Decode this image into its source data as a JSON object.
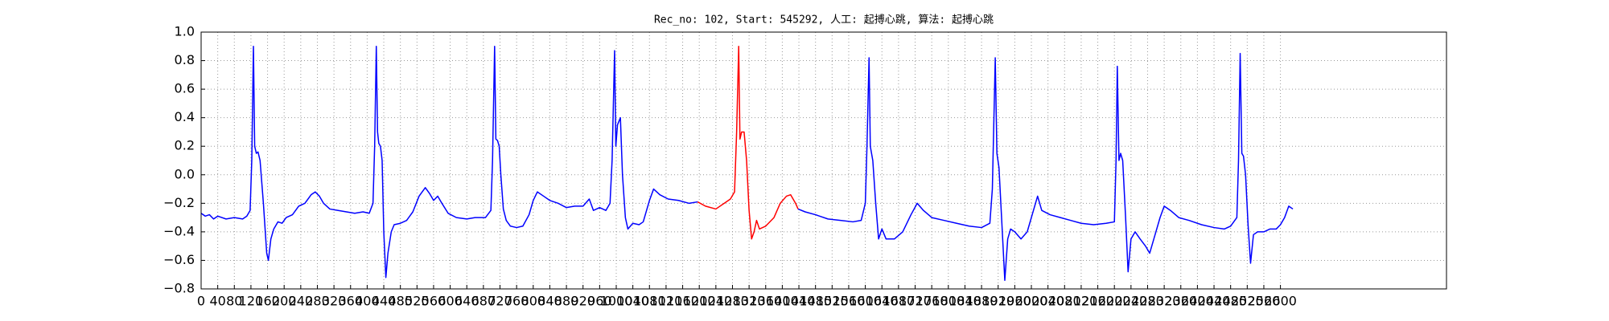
{
  "chart_data": {
    "type": "line",
    "title": "Rec_no: 102, Start: 545292, 人工: 起搏心跳, 算法: 起搏心跳",
    "xlim": [
      0,
      3000
    ],
    "xticks": [
      0,
      40,
      80,
      120,
      160,
      200,
      240,
      280,
      320,
      360,
      400,
      440,
      480,
      520,
      560,
      600,
      640,
      680,
      720,
      760,
      800,
      840,
      880,
      920,
      960,
      1000,
      1040,
      1080,
      1120,
      1160,
      1200,
      1240,
      1280,
      1320,
      1360,
      1400,
      1440,
      1480,
      1520,
      1560,
      1600,
      1640,
      1680,
      1720,
      1760,
      1800,
      1840,
      1880,
      1920,
      1960,
      2000,
      2040,
      2080,
      2120,
      2160,
      2200,
      2240,
      2280,
      2320,
      2360,
      2400,
      2440,
      2480,
      2520,
      2560,
      2600
    ],
    "ylim": [
      -0.8,
      1.0
    ],
    "yticks": [
      {
        "value": -0.8,
        "label": "−0.8"
      },
      {
        "value": -0.6,
        "label": "−0.6"
      },
      {
        "value": -0.4,
        "label": "−0.4"
      },
      {
        "value": -0.2,
        "label": "−0.2"
      },
      {
        "value": 0,
        "label": "0.0"
      },
      0.2,
      0.4,
      0.6,
      0.8,
      {
        "value": 1,
        "label": "1.0"
      }
    ],
    "grid": true,
    "series": [
      {
        "color": "#0000ff",
        "x": [
          0,
          10,
          20,
          30,
          40,
          60,
          80,
          100,
          110,
          118,
          122,
          126,
          129,
          133,
          137,
          142,
          150,
          158,
          162,
          168,
          175,
          185,
          195,
          205,
          220,
          235,
          250,
          265,
          275,
          285,
          295,
          310,
          330,
          350,
          370,
          390,
          405,
          414,
          418,
          422,
          425,
          428,
          432,
          436,
          440,
          445,
          450,
          458,
          465,
          480,
          495,
          510,
          525,
          540,
          550,
          560,
          570,
          580,
          595,
          615,
          640,
          660,
          685,
          698,
          702,
          707,
          710,
          714,
          718,
          722,
          728,
          735,
          745,
          760,
          775,
          790,
          800,
          810,
          825,
          840,
          860,
          880,
          900,
          920,
          935,
          945,
          960,
          975,
          985,
          990,
          996,
          999,
          1003,
          1010,
          1015,
          1022,
          1028,
          1040,
          1055,
          1065,
          1080,
          1090,
          1105,
          1125,
          1150,
          1175,
          1196
        ],
        "values": [
          -0.27,
          -0.29,
          -0.28,
          -0.31,
          -0.29,
          -0.31,
          -0.3,
          -0.31,
          -0.29,
          -0.25,
          0.1,
          0.9,
          0.2,
          0.15,
          0.16,
          0.1,
          -0.2,
          -0.55,
          -0.6,
          -0.45,
          -0.38,
          -0.33,
          -0.34,
          -0.3,
          -0.28,
          -0.22,
          -0.2,
          -0.14,
          -0.12,
          -0.15,
          -0.2,
          -0.24,
          -0.25,
          -0.26,
          -0.27,
          -0.26,
          -0.27,
          -0.2,
          0.2,
          0.9,
          0.3,
          0.22,
          0.2,
          0.1,
          -0.4,
          -0.72,
          -0.55,
          -0.4,
          -0.35,
          -0.34,
          -0.32,
          -0.26,
          -0.15,
          -0.09,
          -0.13,
          -0.18,
          -0.15,
          -0.2,
          -0.27,
          -0.3,
          -0.31,
          -0.3,
          -0.3,
          -0.25,
          0.1,
          0.9,
          0.25,
          0.24,
          0.2,
          0.0,
          -0.24,
          -0.32,
          -0.36,
          -0.37,
          -0.36,
          -0.28,
          -0.18,
          -0.12,
          -0.15,
          -0.18,
          -0.2,
          -0.23,
          -0.22,
          -0.22,
          -0.17,
          -0.25,
          -0.23,
          -0.25,
          -0.2,
          0.1,
          0.87,
          0.2,
          0.35,
          0.4,
          0.0,
          -0.3,
          -0.38,
          -0.34,
          -0.35,
          -0.33,
          -0.18,
          -0.1,
          -0.14,
          -0.17,
          -0.18,
          -0.2,
          -0.19
        ]
      },
      {
        "color": "#ff0000",
        "x": [
          1196,
          1215,
          1240,
          1260,
          1275,
          1285,
          1290,
          1295,
          1298,
          1302,
          1308,
          1314,
          1320,
          1326,
          1332,
          1338,
          1345,
          1360,
          1380,
          1395,
          1410,
          1420,
          1432,
          1438
        ],
        "values": [
          -0.19,
          -0.22,
          -0.24,
          -0.2,
          -0.17,
          -0.12,
          0.3,
          0.9,
          0.25,
          0.3,
          0.3,
          0.1,
          -0.25,
          -0.45,
          -0.4,
          -0.32,
          -0.38,
          -0.36,
          -0.3,
          -0.2,
          -0.15,
          -0.14,
          -0.2,
          -0.24
        ]
      },
      {
        "color": "#0000ff",
        "x": [
          1438,
          1455,
          1480,
          1510,
          1540,
          1570,
          1590,
          1600,
          1604,
          1609,
          1612,
          1618,
          1625,
          1632,
          1640,
          1650,
          1670,
          1690,
          1710,
          1725,
          1740,
          1760,
          1790,
          1820,
          1850,
          1880,
          1900,
          1906,
          1913,
          1917,
          1922,
          1930,
          1936,
          1943,
          1950,
          1960,
          1975,
          1990,
          2005,
          2015,
          2025,
          2045,
          2070,
          2095,
          2120,
          2150,
          2180,
          2200,
          2204,
          2207,
          2211,
          2215,
          2220,
          2227,
          2233,
          2240,
          2250,
          2262,
          2275,
          2285,
          2295,
          2310,
          2320,
          2335,
          2355,
          2380,
          2410,
          2440,
          2465,
          2480,
          2495,
          2499,
          2503,
          2507,
          2511,
          2516,
          2522,
          2528,
          2535,
          2545,
          2560,
          2575,
          2590,
          2600,
          2610,
          2620,
          2630
        ],
        "values": [
          -0.24,
          -0.26,
          -0.28,
          -0.31,
          -0.32,
          -0.33,
          -0.32,
          -0.2,
          0.2,
          0.82,
          0.2,
          0.1,
          -0.2,
          -0.45,
          -0.38,
          -0.45,
          -0.45,
          -0.4,
          -0.28,
          -0.2,
          -0.25,
          -0.3,
          -0.32,
          -0.34,
          -0.36,
          -0.37,
          -0.34,
          -0.1,
          0.82,
          0.15,
          0.05,
          -0.4,
          -0.74,
          -0.45,
          -0.38,
          -0.4,
          -0.45,
          -0.4,
          -0.25,
          -0.15,
          -0.25,
          -0.28,
          -0.3,
          -0.32,
          -0.34,
          -0.35,
          -0.34,
          -0.33,
          0.1,
          0.76,
          0.1,
          0.15,
          0.1,
          -0.3,
          -0.68,
          -0.45,
          -0.4,
          -0.45,
          -0.5,
          -0.55,
          -0.45,
          -0.3,
          -0.22,
          -0.25,
          -0.3,
          -0.32,
          -0.35,
          -0.37,
          -0.38,
          -0.36,
          -0.3,
          0.1,
          0.85,
          0.15,
          0.13,
          0.0,
          -0.35,
          -0.62,
          -0.42,
          -0.4,
          -0.4,
          -0.38,
          -0.38,
          -0.35,
          -0.3,
          -0.22,
          -0.24
        ]
      }
    ]
  }
}
